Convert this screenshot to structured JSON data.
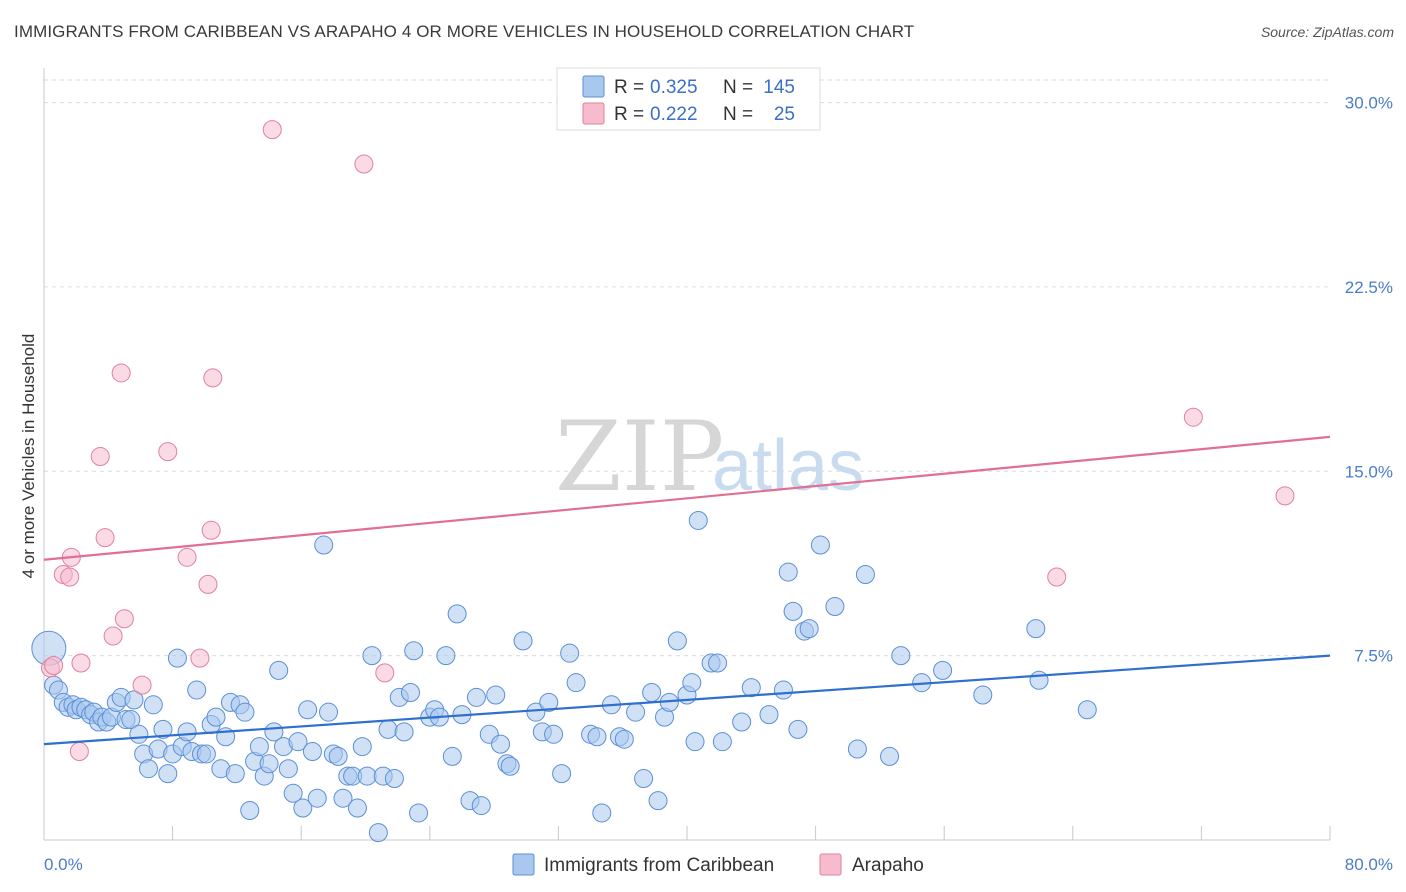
{
  "title": "IMMIGRANTS FROM CARIBBEAN VS ARAPAHO 4 OR MORE VEHICLES IN HOUSEHOLD CORRELATION CHART",
  "source": "Source: ZipAtlas.com",
  "watermark": {
    "zip": "ZIP",
    "atlas": "atlas"
  },
  "legend": {
    "r_label": "R =",
    "n_label": "N =",
    "entries": [
      {
        "name": "Immigrants from Caribbean",
        "r": "0.325",
        "n": "145",
        "color": "#a9c8ee",
        "edge": "#5b8fd6"
      },
      {
        "name": "Arapaho",
        "r": "0.222",
        "n": "25",
        "color": "#f6bccd",
        "edge": "#e0829e"
      }
    ]
  },
  "chart_data": {
    "type": "scatter",
    "title": "IMMIGRANTS FROM CARIBBEAN VS ARAPAHO 4 OR MORE VEHICLES IN HOUSEHOLD CORRELATION CHART",
    "xlabel": "",
    "ylabel": "4 or more Vehicles in Household",
    "xlim": [
      0,
      80
    ],
    "ylim": [
      0,
      31
    ],
    "x_tick_labels": [
      "0.0%",
      "80.0%"
    ],
    "y_ticks": [
      7.5,
      15.0,
      22.5,
      30.0
    ],
    "y_tick_labels": [
      "7.5%",
      "15.0%",
      "22.5%",
      "30.0%"
    ],
    "grid": true,
    "series": [
      {
        "name": "Immigrants from Caribbean",
        "color": "#a9c8ee",
        "edge": "#5b8fd6",
        "line_color": "#2e6fd0",
        "trend": {
          "x": [
            0,
            80
          ],
          "y": [
            3.9,
            7.5
          ]
        },
        "points": [
          [
            0.3,
            7.8
          ],
          [
            0.6,
            6.3
          ],
          [
            0.9,
            6.1
          ],
          [
            1.2,
            5.6
          ],
          [
            1.5,
            5.4
          ],
          [
            1.8,
            5.5
          ],
          [
            2.0,
            5.3
          ],
          [
            2.3,
            5.4
          ],
          [
            2.6,
            5.3
          ],
          [
            2.9,
            5.1
          ],
          [
            3.1,
            5.2
          ],
          [
            3.4,
            4.8
          ],
          [
            3.6,
            5.0
          ],
          [
            3.9,
            4.8
          ],
          [
            4.2,
            5.0
          ],
          [
            4.5,
            5.6
          ],
          [
            4.8,
            5.8
          ],
          [
            5.1,
            4.9
          ],
          [
            5.4,
            4.9
          ],
          [
            5.6,
            5.7
          ],
          [
            5.9,
            4.3
          ],
          [
            6.2,
            3.5
          ],
          [
            6.5,
            2.9
          ],
          [
            6.8,
            5.5
          ],
          [
            7.1,
            3.7
          ],
          [
            7.4,
            4.5
          ],
          [
            7.7,
            2.7
          ],
          [
            8.0,
            3.5
          ],
          [
            8.3,
            7.4
          ],
          [
            8.6,
            3.8
          ],
          [
            8.9,
            4.4
          ],
          [
            9.2,
            3.6
          ],
          [
            9.5,
            6.1
          ],
          [
            9.8,
            3.5
          ],
          [
            10.1,
            3.5
          ],
          [
            10.4,
            4.7
          ],
          [
            10.7,
            5.0
          ],
          [
            11.0,
            2.9
          ],
          [
            11.3,
            4.2
          ],
          [
            11.6,
            5.6
          ],
          [
            11.9,
            2.7
          ],
          [
            12.2,
            5.5
          ],
          [
            12.5,
            5.2
          ],
          [
            12.8,
            1.2
          ],
          [
            13.1,
            3.2
          ],
          [
            13.4,
            3.8
          ],
          [
            13.7,
            2.6
          ],
          [
            14.0,
            3.1
          ],
          [
            14.3,
            4.4
          ],
          [
            14.6,
            6.9
          ],
          [
            14.9,
            3.8
          ],
          [
            15.2,
            2.9
          ],
          [
            15.5,
            1.9
          ],
          [
            15.8,
            4.0
          ],
          [
            16.1,
            1.3
          ],
          [
            16.4,
            5.3
          ],
          [
            16.7,
            3.6
          ],
          [
            17.0,
            1.7
          ],
          [
            17.4,
            12.0
          ],
          [
            17.7,
            5.2
          ],
          [
            18.0,
            3.5
          ],
          [
            18.3,
            3.4
          ],
          [
            18.6,
            1.7
          ],
          [
            18.9,
            2.6
          ],
          [
            19.2,
            2.6
          ],
          [
            19.5,
            1.3
          ],
          [
            19.8,
            3.8
          ],
          [
            20.1,
            2.6
          ],
          [
            20.4,
            7.5
          ],
          [
            20.8,
            0.3
          ],
          [
            21.1,
            2.6
          ],
          [
            21.4,
            4.5
          ],
          [
            21.8,
            2.5
          ],
          [
            22.1,
            5.8
          ],
          [
            22.4,
            4.4
          ],
          [
            22.8,
            6.0
          ],
          [
            23.0,
            7.7
          ],
          [
            23.3,
            1.1
          ],
          [
            24.0,
            5.0
          ],
          [
            24.3,
            5.3
          ],
          [
            24.6,
            5.0
          ],
          [
            25.0,
            7.5
          ],
          [
            25.4,
            3.4
          ],
          [
            25.7,
            9.2
          ],
          [
            26.0,
            5.1
          ],
          [
            26.5,
            1.6
          ],
          [
            26.9,
            5.8
          ],
          [
            27.2,
            1.4
          ],
          [
            27.7,
            4.3
          ],
          [
            28.1,
            5.9
          ],
          [
            28.4,
            3.9
          ],
          [
            28.8,
            3.1
          ],
          [
            29.0,
            3.0
          ],
          [
            29.8,
            8.1
          ],
          [
            30.6,
            5.2
          ],
          [
            31.0,
            4.4
          ],
          [
            31.4,
            5.6
          ],
          [
            31.7,
            4.3
          ],
          [
            32.2,
            2.7
          ],
          [
            32.7,
            7.6
          ],
          [
            33.1,
            6.4
          ],
          [
            34.0,
            4.3
          ],
          [
            34.4,
            4.2
          ],
          [
            34.7,
            1.1
          ],
          [
            35.3,
            5.5
          ],
          [
            35.8,
            4.2
          ],
          [
            36.1,
            4.1
          ],
          [
            36.8,
            5.2
          ],
          [
            37.3,
            2.5
          ],
          [
            37.8,
            6.0
          ],
          [
            38.2,
            1.6
          ],
          [
            38.6,
            5.0
          ],
          [
            38.9,
            5.6
          ],
          [
            39.4,
            8.1
          ],
          [
            40.0,
            5.9
          ],
          [
            40.3,
            6.4
          ],
          [
            40.5,
            4.0
          ],
          [
            40.7,
            13.0
          ],
          [
            41.5,
            7.2
          ],
          [
            41.9,
            7.2
          ],
          [
            42.2,
            4.0
          ],
          [
            43.4,
            4.8
          ],
          [
            44.0,
            6.2
          ],
          [
            45.1,
            5.1
          ],
          [
            46.0,
            6.1
          ],
          [
            46.3,
            10.9
          ],
          [
            46.6,
            9.3
          ],
          [
            46.9,
            4.5
          ],
          [
            47.3,
            8.5
          ],
          [
            47.6,
            8.6
          ],
          [
            48.3,
            12.0
          ],
          [
            49.2,
            9.5
          ],
          [
            50.6,
            3.7
          ],
          [
            51.1,
            10.8
          ],
          [
            52.6,
            3.4
          ],
          [
            53.3,
            7.5
          ],
          [
            54.6,
            6.4
          ],
          [
            55.9,
            6.9
          ],
          [
            58.4,
            5.9
          ],
          [
            61.7,
            8.6
          ],
          [
            61.9,
            6.5
          ],
          [
            64.9,
            5.3
          ]
        ]
      },
      {
        "name": "Arapaho",
        "color": "#f6bccd",
        "edge": "#e0829e",
        "line_color": "#e06f93",
        "trend": {
          "x": [
            0,
            80
          ],
          "y": [
            11.4,
            16.4
          ]
        },
        "points": [
          [
            0.4,
            7.0
          ],
          [
            0.6,
            7.1
          ],
          [
            1.2,
            10.8
          ],
          [
            1.6,
            10.7
          ],
          [
            1.7,
            11.5
          ],
          [
            2.2,
            3.6
          ],
          [
            2.3,
            7.2
          ],
          [
            3.5,
            15.6
          ],
          [
            3.8,
            12.3
          ],
          [
            4.3,
            8.3
          ],
          [
            4.8,
            19.0
          ],
          [
            5.0,
            9.0
          ],
          [
            6.1,
            6.3
          ],
          [
            7.7,
            15.8
          ],
          [
            8.9,
            11.5
          ],
          [
            9.7,
            7.4
          ],
          [
            10.2,
            10.4
          ],
          [
            10.4,
            12.6
          ],
          [
            10.5,
            18.8
          ],
          [
            14.2,
            28.9
          ],
          [
            19.9,
            27.5
          ],
          [
            21.2,
            6.8
          ],
          [
            63.0,
            10.7
          ],
          [
            71.5,
            17.2
          ],
          [
            77.2,
            14.0
          ]
        ]
      }
    ]
  }
}
